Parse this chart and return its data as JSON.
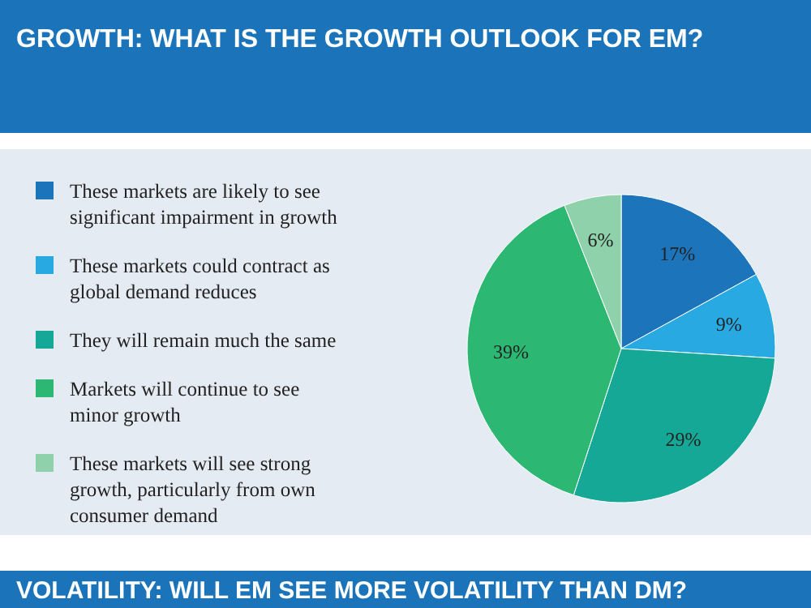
{
  "chart_data": {
    "type": "pie",
    "title": "GROWTH: WHAT IS THE GROWTH OUTLOOK FOR EM?",
    "categories": [
      "These markets are likely to see significant impairment in growth",
      "These markets could contract as global demand reduces",
      "They will remain much the same",
      "Markets will continue to see minor growth",
      "These markets will see strong growth, particularly from own consumer demand"
    ],
    "values": [
      17,
      9,
      29,
      39,
      6
    ],
    "colors": [
      "#1c74bb",
      "#29a9e1",
      "#16a897",
      "#2cb873",
      "#8fd1ab"
    ],
    "value_labels": [
      "17%",
      "9%",
      "29%",
      "39%",
      "6%"
    ],
    "legend": "left",
    "annotations": [
      "VOLATILITY: WILL EM SEE MORE VOLATILITY THAN DM?"
    ]
  }
}
